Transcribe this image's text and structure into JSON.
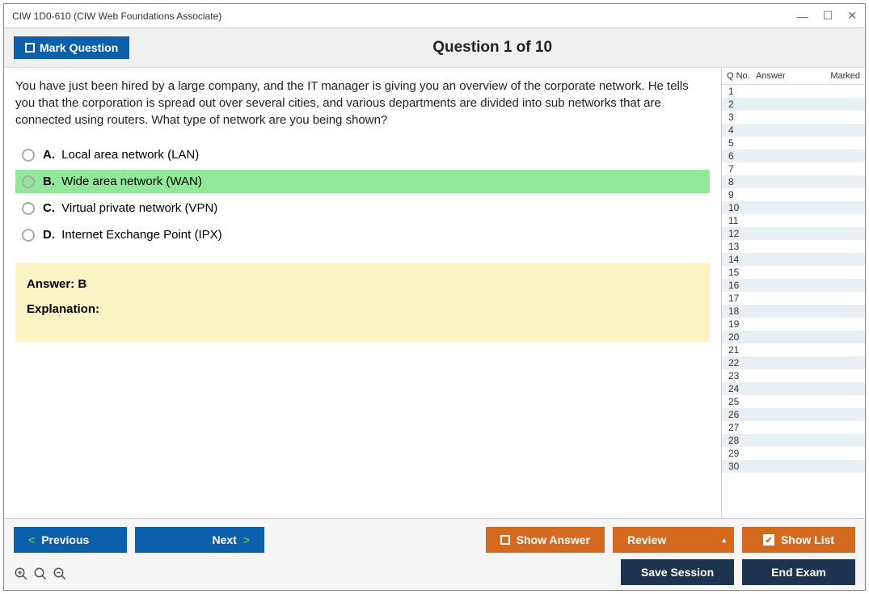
{
  "window": {
    "title": "CIW 1D0-610 (CIW Web Foundations Associate)"
  },
  "header": {
    "mark_label": "Mark Question",
    "question_title": "Question 1 of 10"
  },
  "question": {
    "text": "You have just been hired by a large company, and the IT manager is giving you an overview of the corporate network. He tells you that the corporation is spread out over several cities, and various departments are divided into sub networks that are connected using routers. What type of network are you being shown?",
    "options": [
      {
        "letter": "A.",
        "text": "Local area network (LAN)",
        "correct": false
      },
      {
        "letter": "B.",
        "text": "Wide area network (WAN)",
        "correct": true
      },
      {
        "letter": "C.",
        "text": "Virtual private network (VPN)",
        "correct": false
      },
      {
        "letter": "D.",
        "text": "Internet Exchange Point (IPX)",
        "correct": false
      }
    ]
  },
  "answer": {
    "label": "Answer: B",
    "explanation_label": "Explanation:"
  },
  "side": {
    "col_qno": "Q No.",
    "col_answer": "Answer",
    "col_marked": "Marked",
    "count": 30
  },
  "footer": {
    "previous": "Previous",
    "next": "Next",
    "show_answer": "Show Answer",
    "review": "Review",
    "show_list": "Show List",
    "save_session": "Save Session",
    "end_exam": "End Exam"
  },
  "colors": {
    "blue": "#0b5fab",
    "orange": "#d36a1f",
    "dark": "#1e3350",
    "correct_bg": "#92e89a",
    "answer_bg": "#fcf4c5"
  }
}
